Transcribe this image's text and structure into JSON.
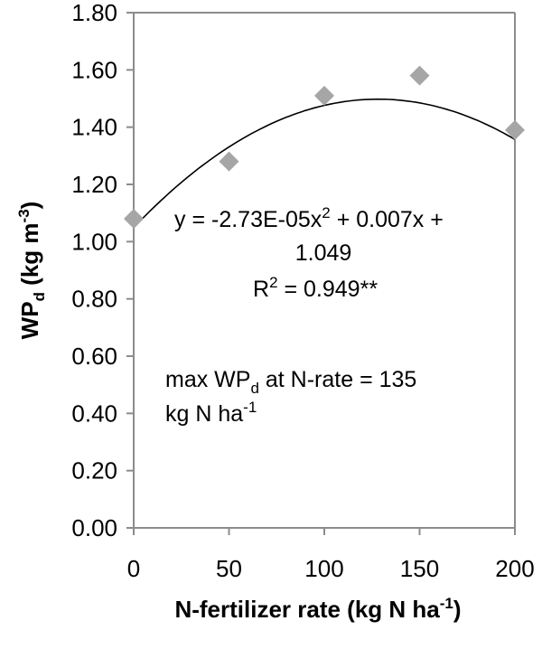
{
  "chart_data": {
    "type": "scatter",
    "x": [
      0,
      50,
      100,
      150,
      200
    ],
    "y": [
      1.08,
      1.28,
      1.51,
      1.58,
      1.39
    ],
    "marker_color": "#a6a6a6",
    "trend_color": "#000000",
    "trendline": {
      "type": "polynomial",
      "a": -2.73e-05,
      "b": 0.007,
      "c": 1.049
    },
    "xlim": [
      0,
      200
    ],
    "ylim": [
      0,
      1.8
    ],
    "xticks": [
      0,
      50,
      100,
      150,
      200
    ],
    "yticks": [
      0.0,
      0.2,
      0.4,
      0.6,
      0.8,
      1.0,
      1.2,
      1.4,
      1.6,
      1.8
    ],
    "xtick_labels": [
      "0",
      "50",
      "100",
      "150",
      "200"
    ],
    "ytick_labels": [
      "0.00",
      "0.20",
      "0.40",
      "0.60",
      "0.80",
      "1.00",
      "1.20",
      "1.40",
      "1.60",
      "1.80"
    ],
    "xlabel": {
      "text": "N-fertilizer rate (kg N ha",
      "sup": "-1",
      "tail": ")"
    },
    "ylabel": {
      "main": "WP",
      "sub": "d",
      "unit": " (kg m",
      "sup": "-3",
      "tail": ")"
    },
    "equation": {
      "line1_pre": "y = -2.73E-05x",
      "line1_sup": "2",
      "line1_post": " + 0.007x +",
      "line2": "1.049",
      "r2_pre": "R",
      "r2_sup": "2",
      "r2_post": " = 0.949**"
    },
    "note": {
      "line1_pre": "max WP",
      "line1_sub": "d",
      "line1_post": " at N-rate = 135",
      "line2_pre": "kg N ha",
      "line2_sup": "-1"
    },
    "grid": false,
    "legend": "none"
  }
}
